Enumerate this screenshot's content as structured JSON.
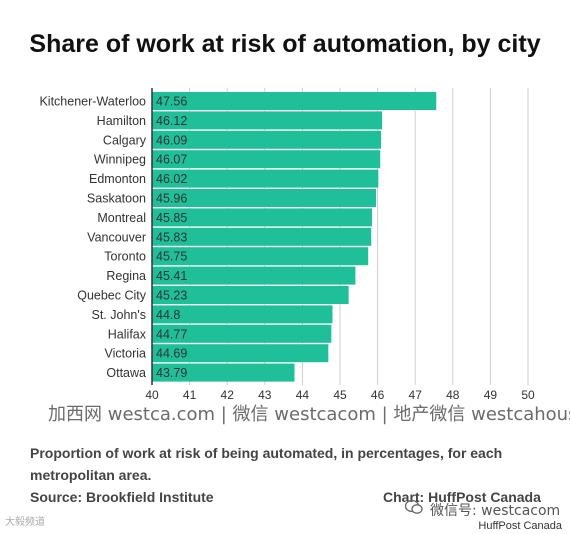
{
  "chart_data": {
    "type": "bar",
    "orientation": "horizontal",
    "title": "Share of work at risk of automation, by city",
    "categories": [
      "Kitchener-Waterloo",
      "Hamilton",
      "Calgary",
      "Winnipeg",
      "Edmonton",
      "Saskatoon",
      "Montreal",
      "Vancouver",
      "Toronto",
      "Regina",
      "Quebec City",
      "St. John's",
      "Halifax",
      "Victoria",
      "Ottawa"
    ],
    "values": [
      47.56,
      46.12,
      46.09,
      46.07,
      46.02,
      45.96,
      45.85,
      45.83,
      45.75,
      45.41,
      45.23,
      44.8,
      44.77,
      44.69,
      43.79
    ],
    "value_labels": [
      "47.56",
      "46.12",
      "46.09",
      "46.07",
      "46.02",
      "45.96",
      "45.85",
      "45.83",
      "45.75",
      "45.41",
      "45.23",
      "44.8",
      "44.77",
      "44.69",
      "43.79"
    ],
    "xlim": [
      40,
      50
    ],
    "xticks": [
      "40",
      "41",
      "42",
      "43",
      "44",
      "45",
      "46",
      "47",
      "48",
      "49",
      "50"
    ],
    "grid": true,
    "bar_color": "#1fbf9a"
  },
  "watermark": "加西网 westca.com | 微信 westcacom | 地产微信 westcahouse",
  "caption": "Proportion of work at risk of being automated, in percentages, for each metropolitan area.",
  "source": "Source: Brookfield Institute",
  "credit": "Chart: HuffPost Canada",
  "wechat_mark": "微信号: westcacom",
  "corner_mark": "大毅频道",
  "footer": "HuffPost Canada"
}
